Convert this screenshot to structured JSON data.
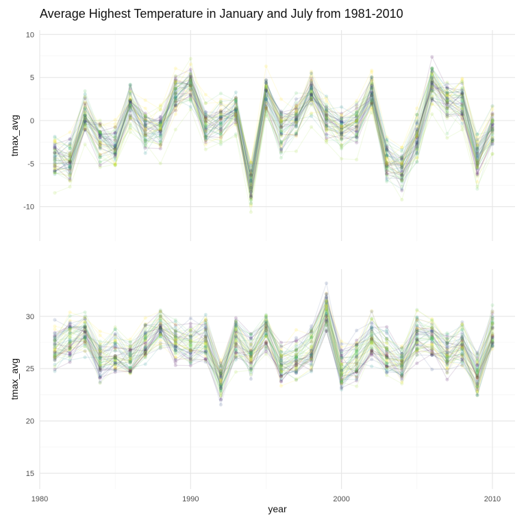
{
  "chart_data": {
    "type": "line",
    "title": "Average Highest Temperature in January and July from 1981-2010",
    "xlabel": "year",
    "x_ticks": [
      1980,
      1990,
      2000,
      2010
    ],
    "xlim": [
      1980,
      2011.5
    ],
    "grid": true,
    "legend": "none",
    "palette": [
      "#440154",
      "#3b528b",
      "#21908d",
      "#5dc863",
      "#a0da39",
      "#fde725"
    ],
    "years": [
      1981,
      1982,
      1983,
      1984,
      1985,
      1986,
      1987,
      1988,
      1989,
      1990,
      1991,
      1992,
      1993,
      1994,
      1995,
      1996,
      1997,
      1998,
      1999,
      2000,
      2001,
      2002,
      2003,
      2004,
      2005,
      2006,
      2007,
      2008,
      2009,
      2010
    ],
    "panels": [
      {
        "name": "January",
        "ylabel": "tmax_avg",
        "y_ticks": [
          -10,
          -5,
          0,
          5,
          10
        ],
        "ylim": [
          -14,
          10.5
        ],
        "center": [
          -4.3,
          -4.7,
          0.5,
          -2.5,
          -3.0,
          1.8,
          -1.2,
          -1.0,
          3.0,
          4.0,
          -0.8,
          0.0,
          1.0,
          -7.0,
          3.0,
          -1.0,
          0.2,
          3.2,
          0.0,
          -1.0,
          -0.5,
          3.0,
          -4.5,
          -5.5,
          -2.0,
          4.3,
          2.0,
          2.0,
          -4.5,
          -1.0
        ],
        "spread": 2.8,
        "n_stations": 55
      },
      {
        "name": "July",
        "ylabel": "tmax_avg",
        "y_ticks": [
          15,
          20,
          25,
          30
        ],
        "ylim": [
          13.5,
          34.5
        ],
        "center": [
          27.0,
          28.0,
          28.5,
          26.0,
          26.5,
          26.0,
          27.5,
          29.0,
          27.5,
          27.5,
          28.0,
          24.0,
          28.0,
          26.5,
          28.5,
          25.5,
          26.0,
          27.0,
          30.5,
          25.0,
          26.0,
          28.0,
          26.5,
          25.5,
          28.0,
          28.0,
          26.5,
          27.5,
          24.5,
          28.5
        ],
        "spread": 2.2,
        "n_stations": 55
      }
    ]
  }
}
